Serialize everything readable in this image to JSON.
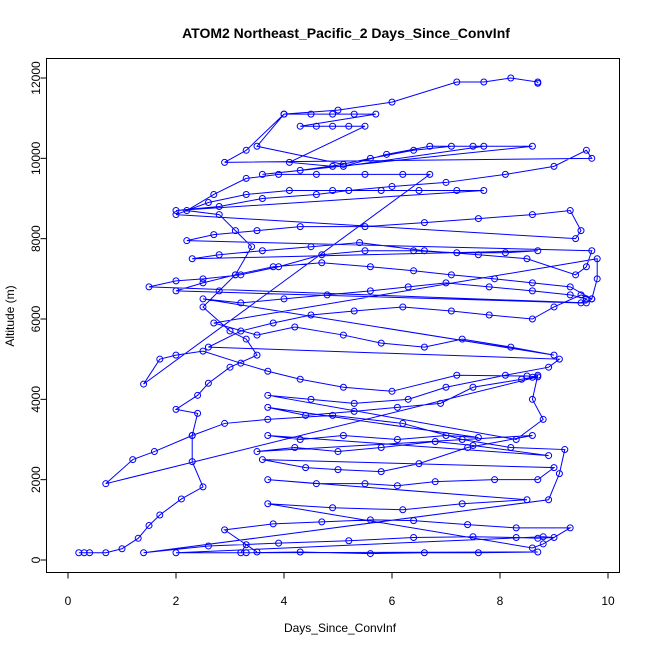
{
  "chart_data": {
    "type": "scatter",
    "title": "ATOM2 Northeast_Pacific_2 Days_Since_ConvInf",
    "xlabel": "Days_Since_ConvInf",
    "ylabel": "Altitude (m)",
    "xlim": [
      0,
      10
    ],
    "ylim": [
      0,
      12000
    ],
    "xticks": [
      "0",
      "2",
      "4",
      "6",
      "8",
      "10"
    ],
    "yticks": [
      "0",
      "2000",
      "4000",
      "6000",
      "8000",
      "10000",
      "12000"
    ],
    "grid": false,
    "legend": "none",
    "series": [
      {
        "color": "#0000ff",
        "marker": "open-circle",
        "connected": true,
        "points": [
          [
            0.2,
            180
          ],
          [
            0.3,
            180
          ],
          [
            0.4,
            180
          ],
          [
            0.7,
            180
          ],
          [
            1.0,
            280
          ],
          [
            1.3,
            540
          ],
          [
            1.5,
            860
          ],
          [
            1.7,
            1120
          ],
          [
            2.1,
            1520
          ],
          [
            2.5,
            1820
          ],
          [
            2.3,
            2450
          ],
          [
            2.3,
            3100
          ],
          [
            2.4,
            3650
          ],
          [
            2.0,
            3750
          ],
          [
            2.4,
            4100
          ],
          [
            2.6,
            4400
          ],
          [
            3.0,
            4800
          ],
          [
            3.5,
            5100
          ],
          [
            3.3,
            5500
          ],
          [
            3.0,
            5700
          ],
          [
            2.5,
            6300
          ],
          [
            2.8,
            6700
          ],
          [
            3.1,
            7100
          ],
          [
            3.4,
            7800
          ],
          [
            3.1,
            8200
          ],
          [
            2.8,
            8600
          ],
          [
            2.2,
            8700
          ],
          [
            2.7,
            9100
          ],
          [
            3.3,
            9500
          ],
          [
            3.9,
            9600
          ],
          [
            4.6,
            9600
          ],
          [
            5.5,
            9600
          ],
          [
            6.2,
            9600
          ],
          [
            6.7,
            9600
          ],
          [
            1.4,
            4380
          ],
          [
            1.7,
            5000
          ],
          [
            2.0,
            5100
          ],
          [
            2.5,
            5200
          ],
          [
            3.2,
            4900
          ],
          [
            3.7,
            4700
          ],
          [
            4.3,
            4500
          ],
          [
            5.1,
            4300
          ],
          [
            6.0,
            4200
          ],
          [
            7.2,
            4600
          ],
          [
            8.5,
            4580
          ],
          [
            8.7,
            4560
          ],
          [
            0.7,
            1900
          ],
          [
            1.2,
            2500
          ],
          [
            1.6,
            2700
          ],
          [
            2.3,
            3100
          ],
          [
            2.9,
            3400
          ],
          [
            3.7,
            3500
          ],
          [
            4.9,
            3600
          ],
          [
            6.2,
            3400
          ],
          [
            7.3,
            3000
          ],
          [
            8.2,
            2800
          ],
          [
            9.2,
            2750
          ],
          [
            9.1,
            2150
          ],
          [
            8.9,
            1500
          ],
          [
            1.4,
            180
          ],
          [
            2.6,
            350
          ],
          [
            3.9,
            420
          ],
          [
            5.2,
            480
          ],
          [
            6.4,
            560
          ],
          [
            7.5,
            580
          ],
          [
            8.3,
            560
          ],
          [
            8.7,
            540
          ],
          [
            9.0,
            560
          ],
          [
            8.8,
            580
          ],
          [
            2.0,
            180
          ],
          [
            3.3,
            180
          ],
          [
            4.3,
            200
          ],
          [
            5.6,
            160
          ],
          [
            6.6,
            180
          ],
          [
            7.6,
            180
          ],
          [
            8.7,
            200
          ],
          [
            3.2,
            180
          ],
          [
            3.3,
            380
          ],
          [
            3.5,
            200
          ],
          [
            2.9,
            750
          ],
          [
            3.8,
            900
          ],
          [
            4.7,
            950
          ],
          [
            5.6,
            1000
          ],
          [
            6.4,
            980
          ],
          [
            7.4,
            880
          ],
          [
            8.3,
            800
          ],
          [
            9.3,
            800
          ],
          [
            8.8,
            400
          ],
          [
            8.6,
            300
          ],
          [
            3.7,
            1400
          ],
          [
            4.9,
            1300
          ],
          [
            6.2,
            1250
          ],
          [
            7.3,
            1400
          ],
          [
            8.5,
            1500
          ],
          [
            3.7,
            2000
          ],
          [
            4.6,
            1900
          ],
          [
            5.5,
            1900
          ],
          [
            6.1,
            1850
          ],
          [
            6.8,
            1950
          ],
          [
            7.9,
            2000
          ],
          [
            8.7,
            2000
          ],
          [
            9.0,
            2300
          ],
          [
            3.6,
            2500
          ],
          [
            4.4,
            2300
          ],
          [
            5.0,
            2250
          ],
          [
            5.8,
            2200
          ],
          [
            6.5,
            2400
          ],
          [
            7.4,
            2800
          ],
          [
            8.6,
            3100
          ],
          [
            3.5,
            2700
          ],
          [
            4.2,
            2800
          ],
          [
            5.0,
            2700
          ],
          [
            5.8,
            2800
          ],
          [
            6.8,
            2950
          ],
          [
            7.5,
            2850
          ],
          [
            8.9,
            2600
          ],
          [
            3.7,
            3100
          ],
          [
            4.3,
            3000
          ],
          [
            5.1,
            3100
          ],
          [
            6.1,
            3000
          ],
          [
            7.0,
            3100
          ],
          [
            7.6,
            3050
          ],
          [
            3.7,
            3800
          ],
          [
            4.4,
            3600
          ],
          [
            5.3,
            3700
          ],
          [
            6.1,
            3800
          ],
          [
            6.9,
            3900
          ],
          [
            7.5,
            4300
          ],
          [
            8.4,
            4500
          ],
          [
            8.6,
            4550
          ],
          [
            8.7,
            4600
          ],
          [
            8.6,
            4000
          ],
          [
            8.8,
            3500
          ],
          [
            8.3,
            3000
          ],
          [
            3.7,
            4100
          ],
          [
            4.5,
            4000
          ],
          [
            5.3,
            3900
          ],
          [
            6.3,
            4000
          ],
          [
            7.0,
            4300
          ],
          [
            8.1,
            4600
          ],
          [
            8.9,
            4800
          ],
          [
            9.1,
            5000
          ],
          [
            2.6,
            5300
          ],
          [
            3.2,
            5700
          ],
          [
            3.8,
            5900
          ],
          [
            4.5,
            6100
          ],
          [
            5.3,
            6200
          ],
          [
            6.2,
            6300
          ],
          [
            7.1,
            6200
          ],
          [
            7.8,
            6100
          ],
          [
            8.6,
            6000
          ],
          [
            9.0,
            6300
          ],
          [
            9.5,
            6600
          ],
          [
            9.7,
            6500
          ],
          [
            9.8,
            7000
          ],
          [
            9.8,
            7500
          ],
          [
            2.7,
            5900
          ],
          [
            3.5,
            5600
          ],
          [
            4.2,
            5800
          ],
          [
            5.1,
            5600
          ],
          [
            5.8,
            5400
          ],
          [
            6.6,
            5300
          ],
          [
            7.3,
            5500
          ],
          [
            8.2,
            5300
          ],
          [
            9.0,
            5100
          ],
          [
            2.5,
            6500
          ],
          [
            3.2,
            6400
          ],
          [
            4.0,
            6500
          ],
          [
            4.8,
            6600
          ],
          [
            5.6,
            6700
          ],
          [
            6.3,
            6800
          ],
          [
            7.0,
            6900
          ],
          [
            7.8,
            6800
          ],
          [
            8.6,
            6700
          ],
          [
            9.3,
            6600
          ],
          [
            9.6,
            6500
          ],
          [
            9.5,
            6400
          ],
          [
            2.0,
            6700
          ],
          [
            2.5,
            6900
          ],
          [
            3.1,
            7100
          ],
          [
            3.8,
            7300
          ],
          [
            4.7,
            7400
          ],
          [
            5.6,
            7300
          ],
          [
            6.4,
            7200
          ],
          [
            7.1,
            7100
          ],
          [
            7.9,
            7000
          ],
          [
            8.6,
            6900
          ],
          [
            9.3,
            6800
          ],
          [
            9.7,
            6500
          ],
          [
            9.6,
            6400
          ],
          [
            1.5,
            6800
          ],
          [
            2.0,
            6950
          ],
          [
            2.5,
            7000
          ],
          [
            3.2,
            7100
          ],
          [
            3.9,
            7300
          ],
          [
            4.7,
            7600
          ],
          [
            5.5,
            7700
          ],
          [
            6.4,
            7700
          ],
          [
            7.2,
            7650
          ],
          [
            8.1,
            7650
          ],
          [
            8.7,
            7700
          ],
          [
            2.3,
            7500
          ],
          [
            2.8,
            7600
          ],
          [
            3.6,
            7700
          ],
          [
            4.5,
            7800
          ],
          [
            5.4,
            7900
          ],
          [
            6.6,
            7700
          ],
          [
            7.6,
            7600
          ],
          [
            8.5,
            7500
          ],
          [
            9.4,
            7100
          ],
          [
            9.6,
            7300
          ],
          [
            9.7,
            7700
          ],
          [
            2.2,
            7950
          ],
          [
            2.7,
            8100
          ],
          [
            3.5,
            8200
          ],
          [
            4.3,
            8300
          ],
          [
            5.5,
            8300
          ],
          [
            6.6,
            8400
          ],
          [
            7.6,
            8500
          ],
          [
            8.6,
            8600
          ],
          [
            9.3,
            8700
          ],
          [
            9.5,
            8200
          ],
          [
            9.4,
            8000
          ],
          [
            2.0,
            8600
          ],
          [
            2.6,
            8900
          ],
          [
            3.3,
            9100
          ],
          [
            4.1,
            9200
          ],
          [
            4.9,
            9200
          ],
          [
            5.8,
            9200
          ],
          [
            6.5,
            9200
          ],
          [
            7.2,
            9200
          ],
          [
            7.7,
            9200
          ],
          [
            2.0,
            8700
          ],
          [
            2.8,
            8800
          ],
          [
            3.6,
            9000
          ],
          [
            4.6,
            9100
          ],
          [
            5.2,
            9200
          ],
          [
            6.0,
            9300
          ],
          [
            7.0,
            9400
          ],
          [
            8.1,
            9600
          ],
          [
            9.0,
            9800
          ],
          [
            9.6,
            10200
          ],
          [
            9.7,
            10000
          ],
          [
            2.9,
            9900
          ],
          [
            3.3,
            10200
          ],
          [
            4.0,
            11100
          ],
          [
            4.5,
            11100
          ],
          [
            4.9,
            11100
          ],
          [
            5.3,
            11100
          ],
          [
            5.7,
            11100
          ],
          [
            4.3,
            10800
          ],
          [
            4.6,
            10800
          ],
          [
            4.9,
            10800
          ],
          [
            5.2,
            10800
          ],
          [
            5.5,
            10800
          ],
          [
            4.1,
            9900
          ],
          [
            4.9,
            9800
          ],
          [
            5.6,
            10000
          ],
          [
            6.4,
            10200
          ],
          [
            7.1,
            10300
          ],
          [
            7.7,
            10300
          ],
          [
            5.1,
            9800
          ],
          [
            5.9,
            10100
          ],
          [
            6.7,
            10300
          ],
          [
            7.5,
            10300
          ],
          [
            8.6,
            10300
          ],
          [
            3.6,
            9600
          ],
          [
            4.3,
            9700
          ],
          [
            5.1,
            9850
          ],
          [
            3.5,
            10300
          ],
          [
            4.0,
            11100
          ],
          [
            5.0,
            11200
          ],
          [
            6.0,
            11400
          ],
          [
            7.2,
            11900
          ],
          [
            7.7,
            11900
          ],
          [
            8.2,
            12000
          ],
          [
            8.7,
            11900
          ],
          [
            8.7,
            11870
          ]
        ]
      }
    ]
  }
}
